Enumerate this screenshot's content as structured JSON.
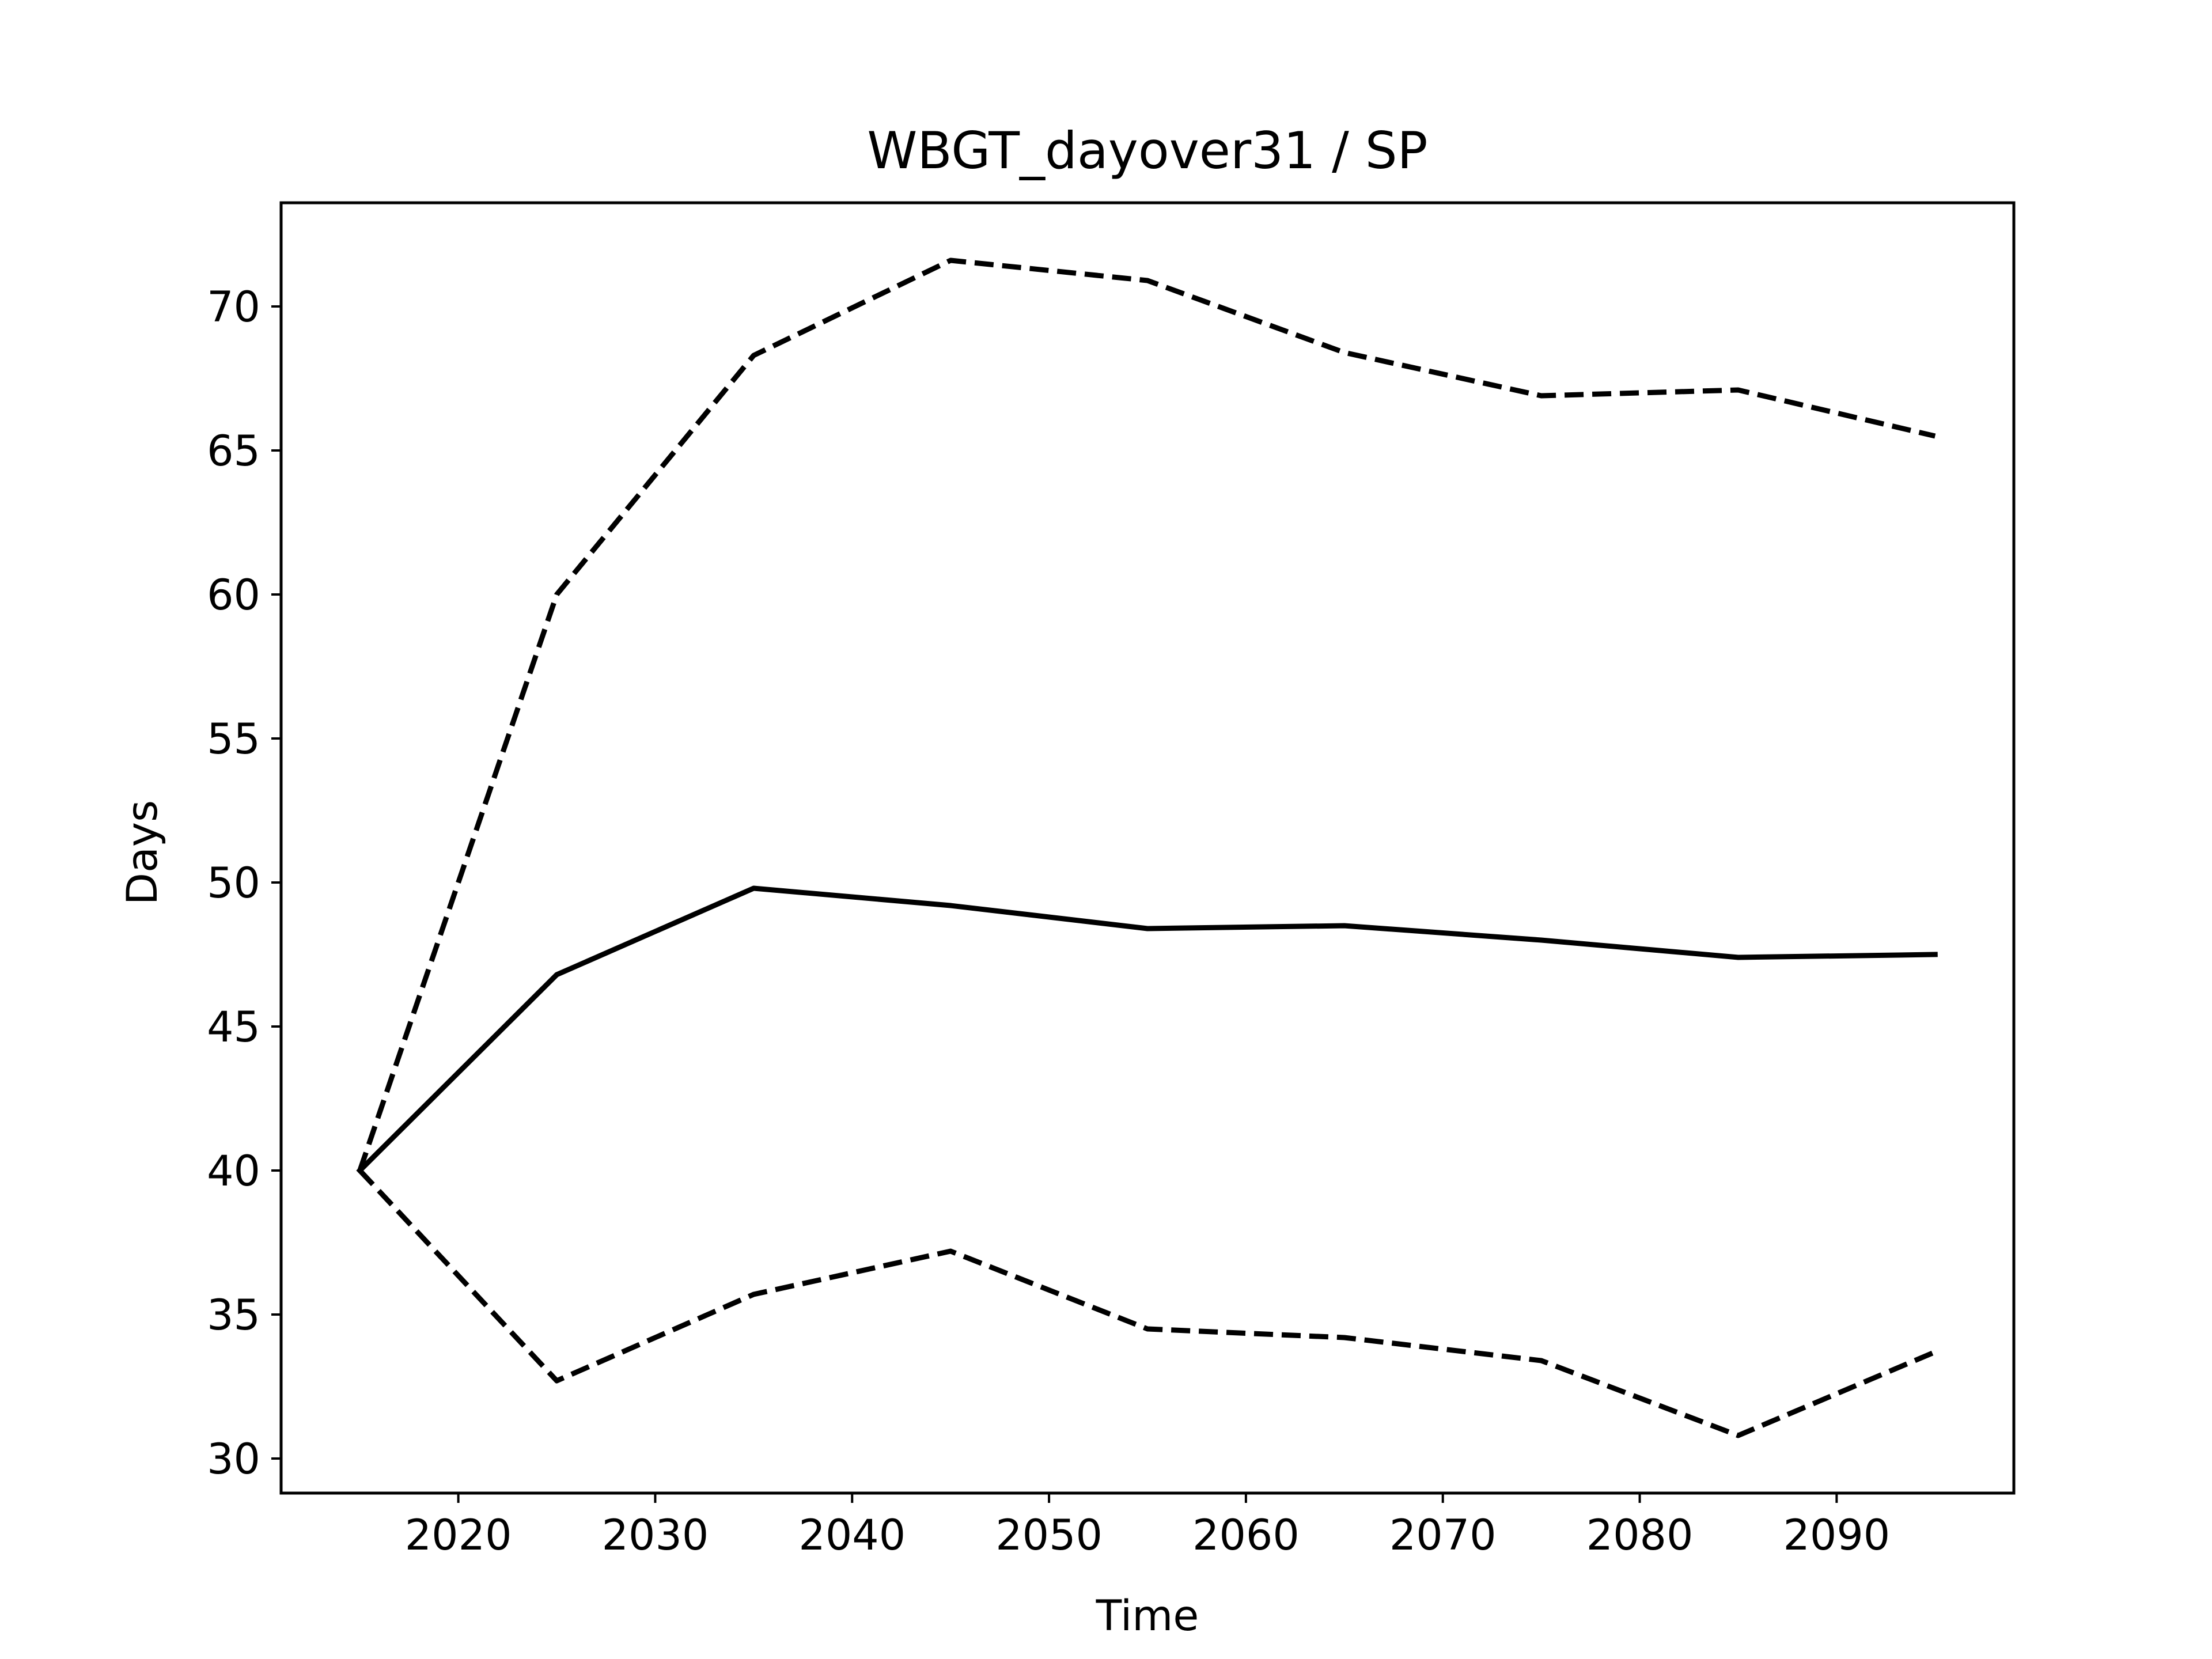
{
  "chart_data": {
    "type": "line",
    "title": "WBGT_dayover31 / SP",
    "xlabel": "Time",
    "ylabel": "Days",
    "x": [
      2015,
      2025,
      2035,
      2045,
      2055,
      2065,
      2075,
      2085,
      2095
    ],
    "xlim": [
      2011,
      2099
    ],
    "ylim": [
      28.8,
      73.6
    ],
    "xticks": [
      2020,
      2030,
      2040,
      2050,
      2060,
      2070,
      2080,
      2090
    ],
    "yticks": [
      30,
      35,
      40,
      45,
      50,
      55,
      60,
      65,
      70
    ],
    "grid": false,
    "series": [
      {
        "style": "dashed",
        "color": "#000000",
        "values": [
          40.0,
          60.0,
          68.3,
          71.6,
          70.9,
          68.4,
          66.9,
          67.1,
          65.5
        ]
      },
      {
        "style": "solid",
        "color": "#000000",
        "values": [
          40.0,
          46.8,
          49.8,
          49.2,
          48.4,
          48.5,
          48.0,
          47.4,
          47.5
        ]
      },
      {
        "style": "dashed",
        "color": "#000000",
        "values": [
          40.0,
          32.7,
          35.7,
          37.2,
          34.5,
          34.2,
          33.4,
          30.8,
          33.7
        ]
      }
    ]
  }
}
